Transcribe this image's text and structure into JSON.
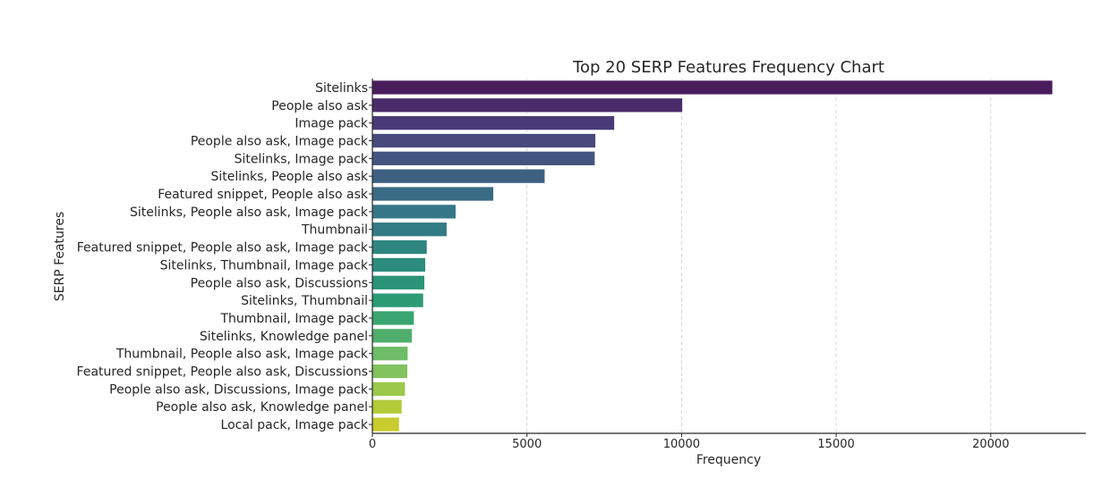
{
  "chart_data": {
    "type": "bar",
    "orientation": "horizontal",
    "title": "Top 20 SERP Features Frequency Chart",
    "xlabel": "Frequency",
    "ylabel": "SERP Features",
    "xlim": [
      0,
      23200
    ],
    "xticks": [
      0,
      5000,
      10000,
      15000,
      20000
    ],
    "grid": "vertical dashed",
    "categories": [
      "Sitelinks",
      "People also ask",
      "Image pack",
      "People also ask, Image pack",
      "Sitelinks, Image pack",
      "Sitelinks, People also ask",
      "Featured snippet, People also ask",
      "Sitelinks, People also ask, Image pack",
      "Thumbnail",
      "Featured snippet, People also ask, Image pack",
      "Sitelinks, Thumbnail, Image pack",
      "People also ask, Discussions",
      "Sitelinks, Thumbnail",
      "Thumbnail, Image pack",
      "Sitelinks, Knowledge panel",
      "Thumbnail, People also ask, Image pack",
      "Featured snippet, People also ask, Discussions",
      "People also ask, Discussions, Image pack",
      "People also ask, Knowledge panel",
      "Local pack, Image pack"
    ],
    "values": [
      22000,
      10030,
      7830,
      7220,
      7200,
      5580,
      3920,
      2700,
      2410,
      1767,
      1718,
      1689,
      1650,
      1351,
      1284,
      1149,
      1138,
      1062,
      956,
      869
    ],
    "colors": [
      "#481c5b",
      "#4a2c6a",
      "#4a3a78",
      "#484a7c",
      "#43557f",
      "#3e6080",
      "#3a6b85",
      "#357787",
      "#327b84",
      "#2f8580",
      "#2c8c7d",
      "#2a9378",
      "#2b9b74",
      "#3aa570",
      "#4fae6c",
      "#6ebc67",
      "#82c25f",
      "#9cc84b",
      "#b3cb39",
      "#c9cc2e"
    ]
  }
}
